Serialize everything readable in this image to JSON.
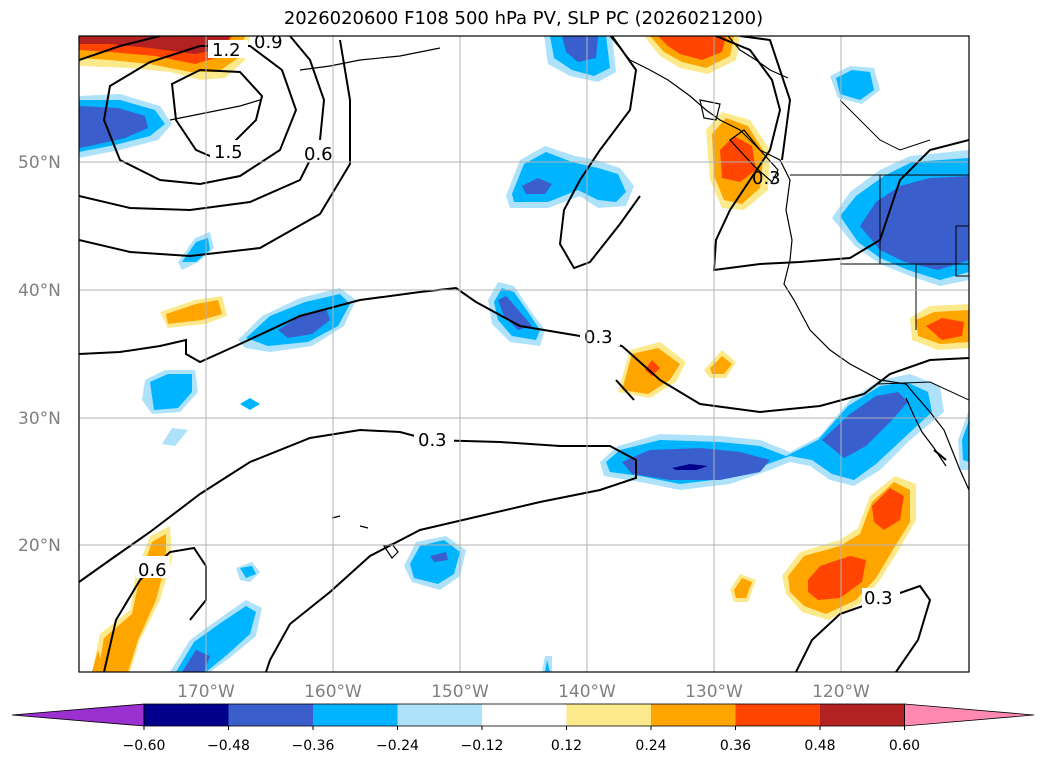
{
  "title": "2026020600 F108 500 hPa PV, SLP PC (2026021200)",
  "lat_labels": [
    "50°N",
    "40°N",
    "30°N",
    "20°N"
  ],
  "lon_labels": [
    "170°W",
    "160°W",
    "150°W",
    "140°W",
    "130°W",
    "120°W"
  ],
  "contour_labels": [
    "1.2",
    "1.5",
    "0.6",
    "0.3",
    "0.3",
    "0.6",
    "0.3",
    "0.9",
    "0.3"
  ],
  "colorbar": {
    "ticks": [
      "−0.60",
      "−0.48",
      "−0.36",
      "−0.24",
      "−0.12",
      "0.12",
      "0.24",
      "0.36",
      "0.48",
      "0.60"
    ],
    "colors": [
      "#9b30d0",
      "#00008b",
      "#3a5fcd",
      "#00b4ff",
      "#aee2fa",
      "#ffffff",
      "#fce98c",
      "#ffa500",
      "#ff4500",
      "#b22222",
      "#ff89b0"
    ]
  },
  "colors": {
    "neg_darkest": "#00008b",
    "neg_dark": "#3a5fcd",
    "neg_mid": "#00b4ff",
    "neg_light": "#aee2fa",
    "pos_light": "#fce98c",
    "pos_mid": "#ffa500",
    "pos_strong": "#ff4500",
    "pos_darker": "#b22222"
  }
}
